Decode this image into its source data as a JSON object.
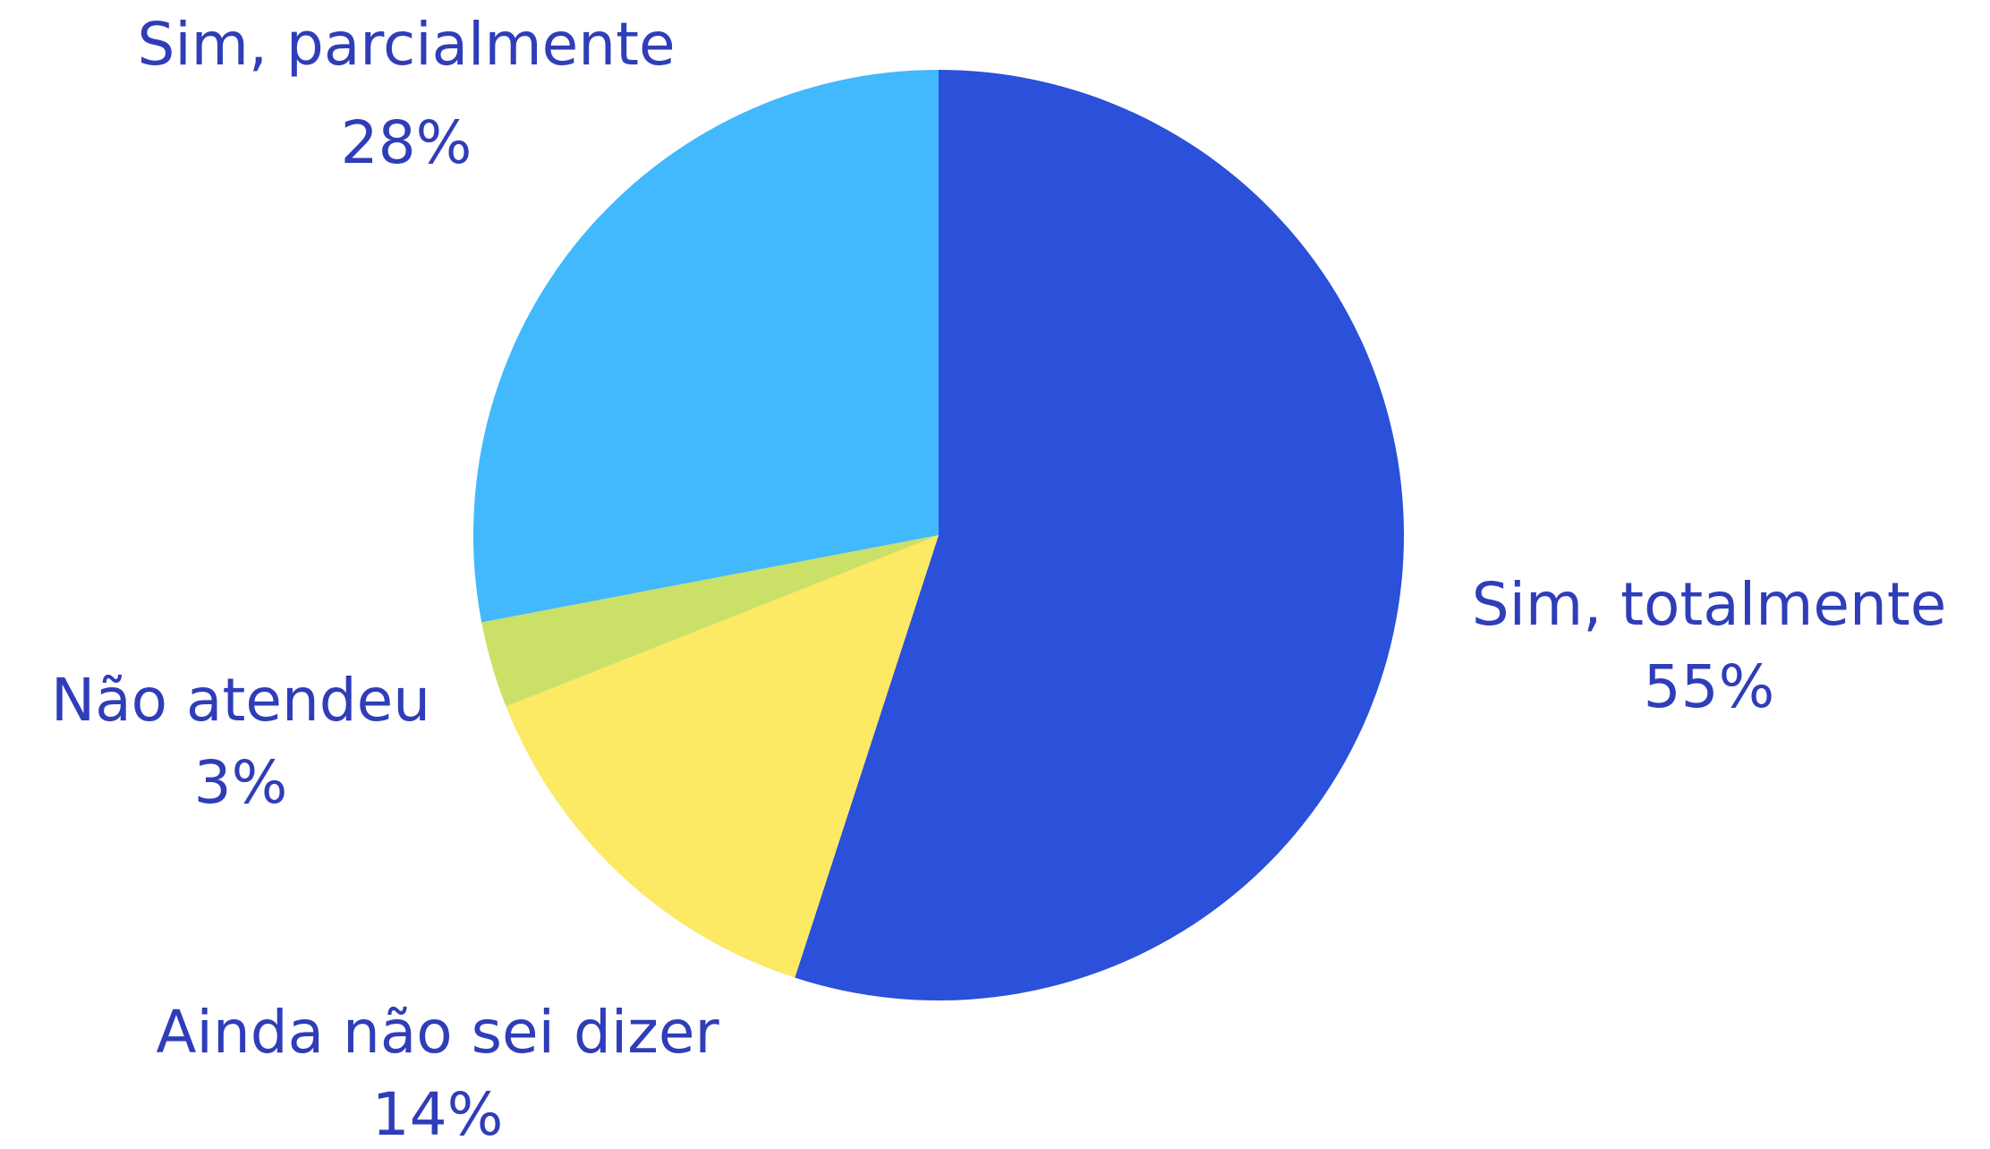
{
  "chart_data": {
    "type": "pie",
    "categories": [
      "Sim, totalmente",
      "Ainda não sei dizer",
      "Não atendeu",
      "Sim, parcialmente"
    ],
    "values": [
      55,
      14,
      3,
      28
    ],
    "value_labels": [
      "55%",
      "14%",
      "3%",
      "28%"
    ],
    "colors": [
      "#2b50d9",
      "#fce964",
      "#cbe066",
      "#42b8fd"
    ]
  }
}
